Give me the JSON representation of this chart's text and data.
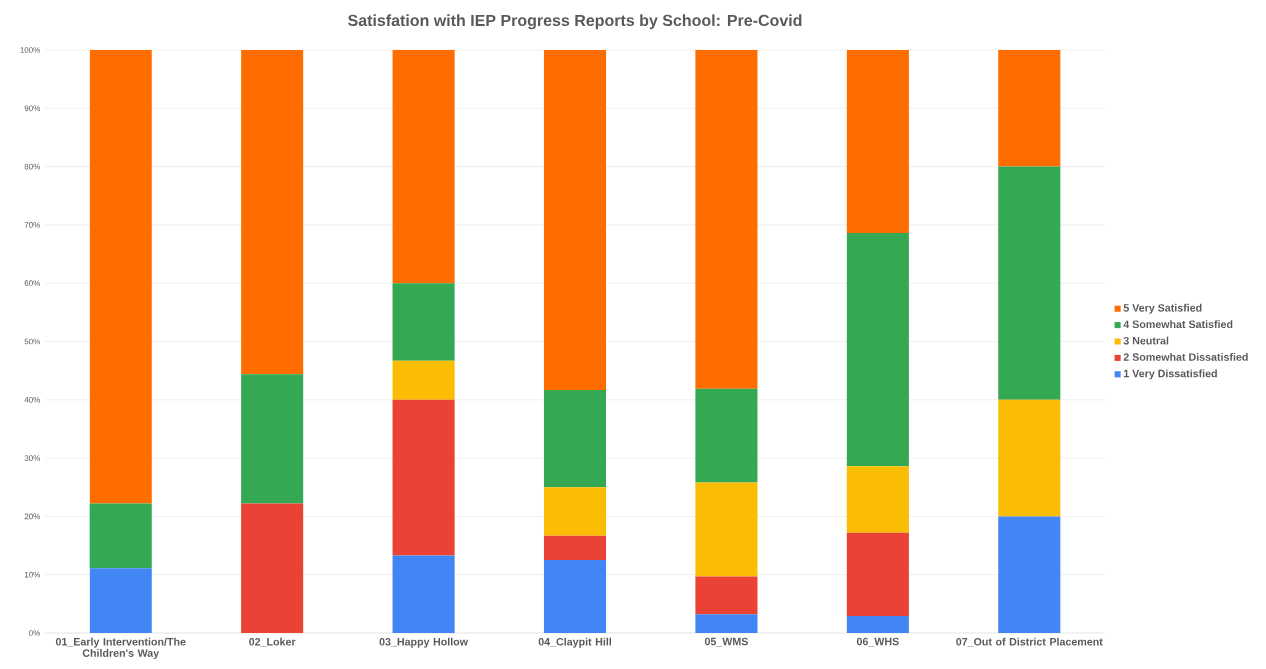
{
  "chart_data": {
    "type": "bar",
    "stacked": true,
    "title": "Satisfation with IEP Progress Reports by School: Pre-Covid",
    "categories": [
      "01_Early Intervention/The Children's Way",
      "02_Loker",
      "03_Happy Hollow",
      "04_Claypit Hill",
      "05_WMS",
      "06_WHS",
      "07_Out of District Placement"
    ],
    "series": [
      {
        "name": "1 Very Dissatisfied",
        "color": "#4285f4",
        "values": [
          11.1,
          0,
          13.3,
          12.5,
          3.2,
          2.9,
          20
        ]
      },
      {
        "name": "2 Somewhat Dissatisfied",
        "color": "#ea4335",
        "values": [
          0,
          22.2,
          26.7,
          4.2,
          6.5,
          14.3,
          0
        ]
      },
      {
        "name": "3 Neutral",
        "color": "#fbbc04",
        "values": [
          0,
          0,
          6.7,
          8.3,
          16.1,
          11.4,
          20
        ]
      },
      {
        "name": "4 Somewhat Satisfied",
        "color": "#34a853",
        "values": [
          11.1,
          22.2,
          13.3,
          16.7,
          16.1,
          40,
          40
        ]
      },
      {
        "name": "5 Very Satisfied",
        "color": "#ff6d01",
        "values": [
          77.8,
          55.6,
          40,
          58.3,
          58.1,
          31.4,
          20
        ]
      }
    ],
    "ylim": [
      0,
      100
    ],
    "yticks": [
      {
        "value": 0,
        "label": "0%"
      },
      {
        "value": 10,
        "label": "10%"
      },
      {
        "value": 20,
        "label": "20%"
      },
      {
        "value": 30,
        "label": "30%"
      },
      {
        "value": 40,
        "label": "40%"
      },
      {
        "value": 50,
        "label": "50%"
      },
      {
        "value": 60,
        "label": "60%"
      },
      {
        "value": 70,
        "label": "70%"
      },
      {
        "value": 80,
        "label": "80%"
      },
      {
        "value": 90,
        "label": "90%"
      },
      {
        "value": 100,
        "label": "100%"
      }
    ],
    "grid": "y",
    "legend": "right"
  }
}
